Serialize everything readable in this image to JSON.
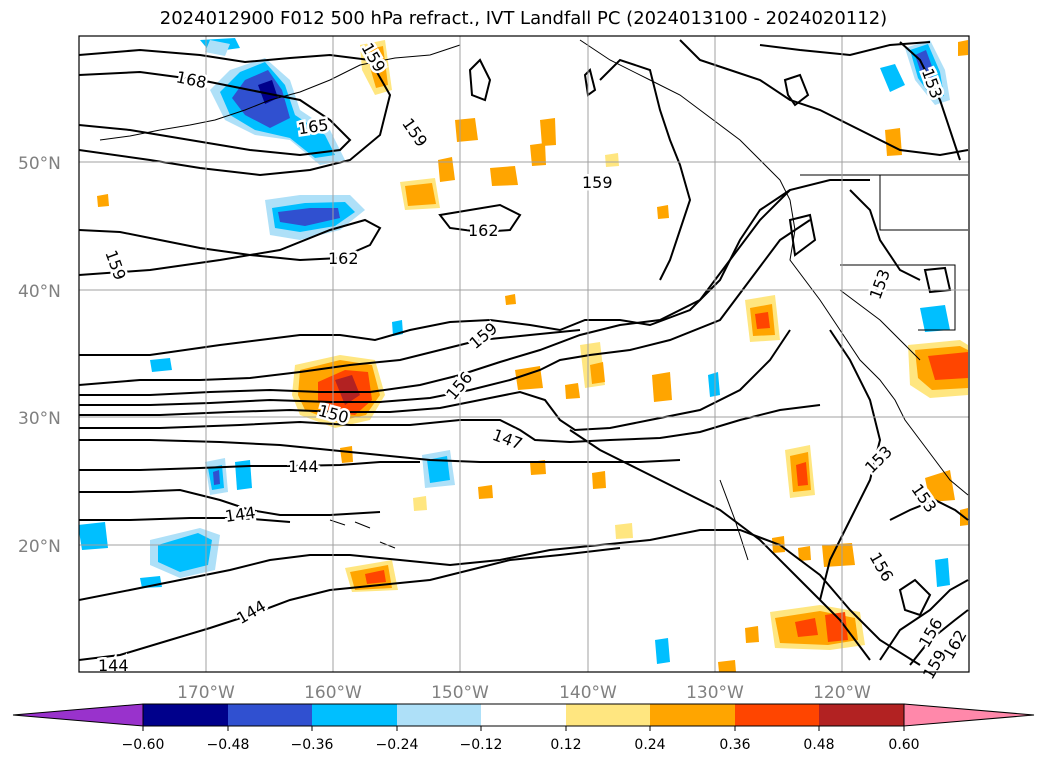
{
  "title": "2024012900 F012 500 hPa refract., IVT Landfall PC (2024013100 - 2024020112)",
  "map": {
    "lat_labels": [
      "50°N",
      "40°N",
      "30°N",
      "20°N"
    ],
    "lon_labels": [
      "170°W",
      "160°W",
      "150°W",
      "140°W",
      "130°W",
      "120°W"
    ],
    "contour_labels": [
      "168",
      "165",
      "162",
      "162",
      "159",
      "159",
      "159",
      "159",
      "159",
      "156",
      "153",
      "153",
      "153",
      "153",
      "150",
      "147",
      "144",
      "144",
      "144",
      "144",
      "156",
      "156",
      "162",
      "159"
    ],
    "line_color": "#000000",
    "grid_color": "#a0a0a0"
  },
  "colorbar": {
    "ticks": [
      "−0.60",
      "−0.48",
      "−0.36",
      "−0.24",
      "−0.12",
      "0.12",
      "0.24",
      "0.36",
      "0.48",
      "0.60"
    ],
    "colors": [
      "#9932cc",
      "#00008b",
      "#3050d0",
      "#00bfff",
      "#aee0f8",
      "#ffffff",
      "#ffe680",
      "#ffa500",
      "#ff4500",
      "#b22222",
      "#ff88aa"
    ]
  }
}
